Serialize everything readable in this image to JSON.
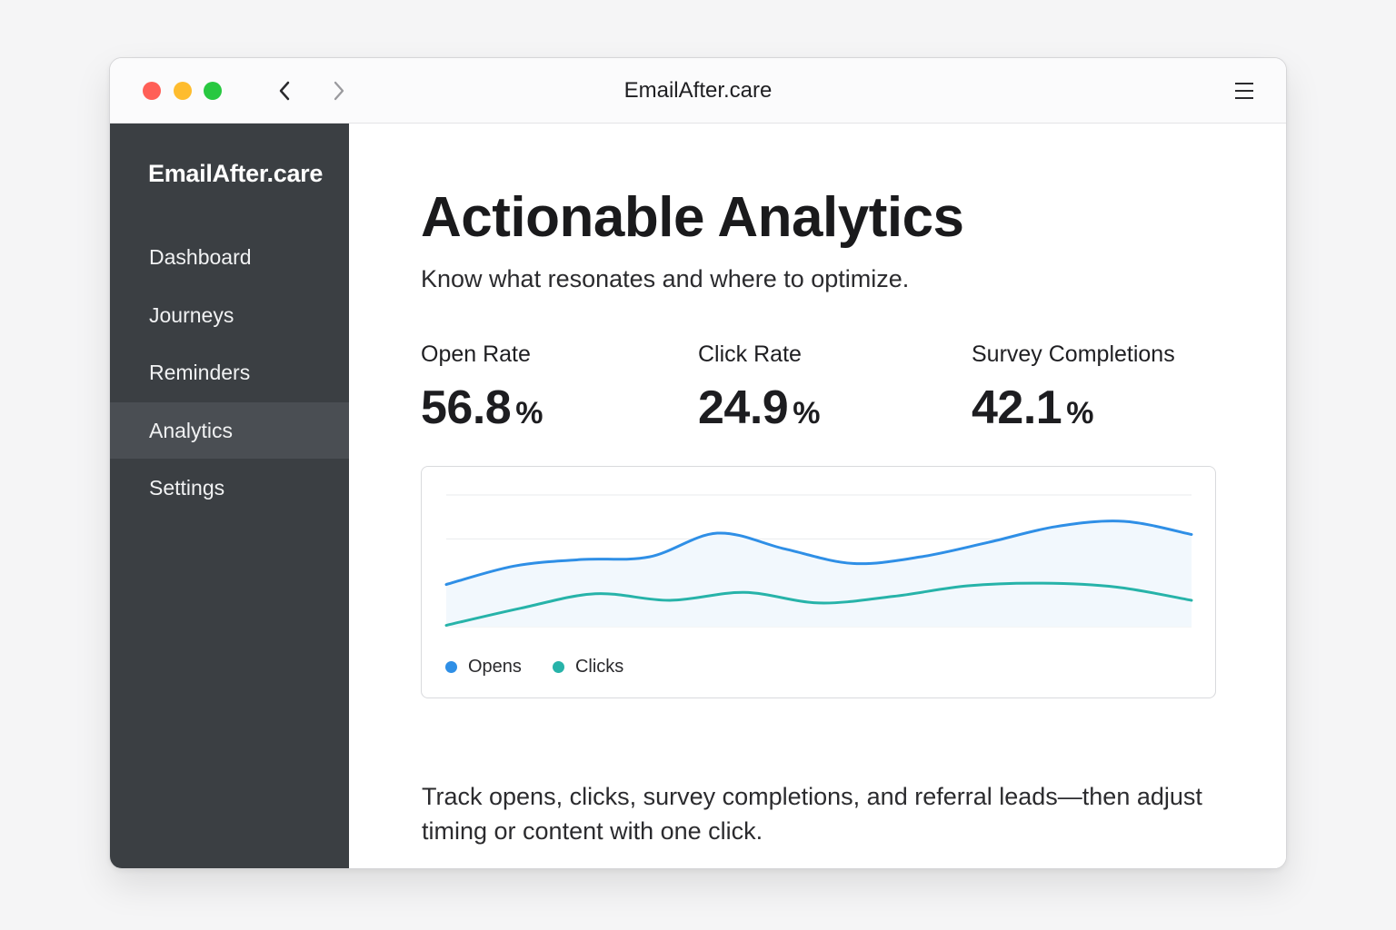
{
  "window": {
    "title": "EmailAfter.care",
    "traffic_lights": {
      "close": "#ff5f57",
      "minimize": "#febc2e",
      "maximize": "#28c840"
    },
    "icons": [
      "chevron-left-icon",
      "chevron-right-icon",
      "menu-icon"
    ]
  },
  "sidebar": {
    "brand": "EmailAfter.care",
    "items": [
      {
        "label": "Dashboard",
        "active": false
      },
      {
        "label": "Journeys",
        "active": false
      },
      {
        "label": "Reminders",
        "active": false
      },
      {
        "label": "Analytics",
        "active": true
      },
      {
        "label": "Settings",
        "active": false
      }
    ]
  },
  "main": {
    "title": "Actionable Analytics",
    "subtitle": "Know what resonates and where to optimize.",
    "metrics": [
      {
        "label": "Open Rate",
        "value": "56.8",
        "unit": "%"
      },
      {
        "label": "Click Rate",
        "value": "24.9",
        "unit": "%"
      },
      {
        "label": "Survey Completions",
        "value": "42.1",
        "unit": "%"
      }
    ],
    "description": "Track opens, clicks, survey completions, and referral leads—then adjust timing or content with one click."
  },
  "chart_data": {
    "type": "line",
    "series": [
      {
        "name": "Opens",
        "color": "#2f8fe6",
        "values": [
          0.32,
          0.46,
          0.51,
          0.53,
          0.71,
          0.59,
          0.48,
          0.53,
          0.64,
          0.76,
          0.8,
          0.7
        ],
        "area_fill": "#f2f8fd"
      },
      {
        "name": "Clicks",
        "color": "#27b3a9",
        "values": [
          0.01,
          0.14,
          0.25,
          0.2,
          0.26,
          0.18,
          0.23,
          0.31,
          0.33,
          0.3,
          0.2
        ]
      }
    ],
    "grid": true,
    "legend_position": "bottom-left",
    "xlabel": "",
    "ylabel": "",
    "ylim": [
      0,
      1
    ]
  },
  "colors": {
    "sidebar_bg": "#3b3f43",
    "sidebar_active": "#4a4e53",
    "opens": "#2f8fe6",
    "clicks": "#27b3a9"
  }
}
